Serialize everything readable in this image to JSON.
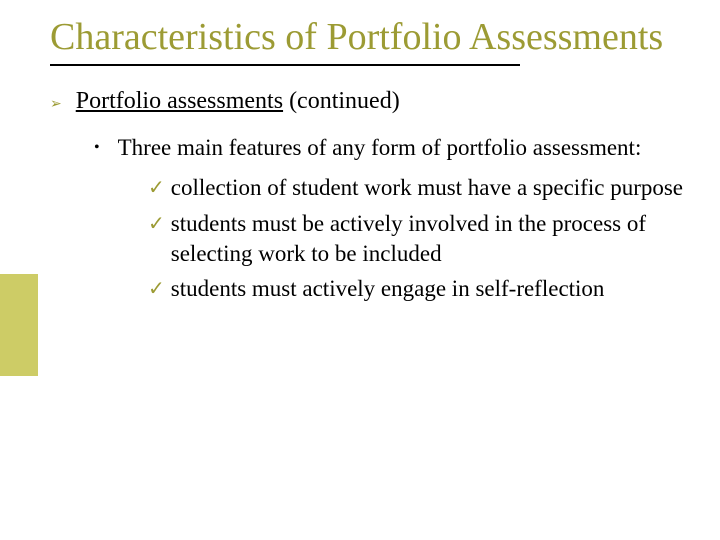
{
  "colors": {
    "title": "#9c9b34",
    "l1_bullet": "#9c9b34",
    "l3_bullet": "#9c9b34",
    "sidebar_square": "#cdcc66",
    "text": "#000000",
    "background": "#ffffff"
  },
  "title": "Characteristics of Portfolio Assessments",
  "l1": {
    "underlined": "Portfolio assessments",
    "rest": " (continued)"
  },
  "l2": "Three main features of any form of portfolio assessment:",
  "l3": [
    "collection of student work must have a specific purpose",
    "students must be actively involved in the process of selecting work to be included",
    "students must actively engage in self-reflection"
  ],
  "bullets": {
    "l1": "➢",
    "l2": "•",
    "l3": "✓"
  },
  "typography": {
    "title_fontsize": 38,
    "body_fontsize": 23,
    "font_family": "Times New Roman"
  }
}
